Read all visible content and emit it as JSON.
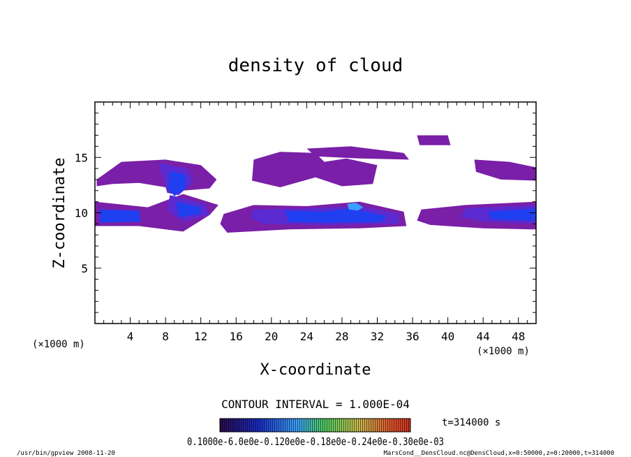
{
  "chart_data": {
    "type": "heatmap",
    "title": "density of cloud",
    "xlabel": "X-coordinate",
    "ylabel": "Z-coordinate",
    "x_unit_label_left": "(×1000 m)",
    "x_unit_label_right": "(×1000 m)",
    "xlim": [
      0,
      50
    ],
    "ylim": [
      0,
      20
    ],
    "x_ticks": [
      4,
      8,
      12,
      16,
      20,
      24,
      28,
      32,
      36,
      40,
      44,
      48
    ],
    "y_ticks": [
      5,
      10,
      15
    ],
    "x_tick_labels": [
      "4",
      "8",
      "12",
      "16",
      "20",
      "24",
      "28",
      "32",
      "36",
      "40",
      "44",
      "48"
    ],
    "y_tick_labels": [
      "5",
      "10",
      "15"
    ],
    "contour_interval_text": "CONTOUR INTERVAL = 1.000E-04",
    "time_text": "t=314000 s",
    "colorbar_labels_text": "0.1000e-6.0e0e-0.120e0e-0.18e0e-0.24e0e-0.30e0e-03",
    "footer_left": "/usr/bin/gpview  2008-11-20",
    "footer_right": "MarsCond__DensCloud.nc@DensCloud,x=0:50000,z=0:20000,t=314000",
    "colors": {
      "low": "#7a1fa8",
      "mid": "#5b2ad0",
      "high": "#1f3ff0",
      "peak": "#3aa0ff"
    },
    "regions": [
      {
        "level": "low",
        "poly": [
          [
            0.2,
            13.0
          ],
          [
            3,
            14.6
          ],
          [
            8,
            14.8
          ],
          [
            12,
            14.3
          ],
          [
            13.8,
            13.0
          ],
          [
            13,
            12.2
          ],
          [
            10,
            12.0
          ],
          [
            8,
            12.3
          ],
          [
            5,
            12.7
          ],
          [
            2,
            12.6
          ],
          [
            0.2,
            12.4
          ]
        ]
      },
      {
        "level": "mid",
        "poly": [
          [
            7.2,
            14.5
          ],
          [
            10.5,
            14.0
          ],
          [
            11.2,
            12.8
          ],
          [
            9.5,
            11.6
          ],
          [
            8.2,
            11.8
          ]
        ]
      },
      {
        "level": "high",
        "poly": [
          [
            8.5,
            13.8
          ],
          [
            10.3,
            13.4
          ],
          [
            10.3,
            12.2
          ],
          [
            9.0,
            11.5
          ],
          [
            8.3,
            12.2
          ]
        ]
      },
      {
        "level": "low",
        "poly": [
          [
            18,
            14.8
          ],
          [
            21,
            15.5
          ],
          [
            25,
            15.4
          ],
          [
            26,
            14.6
          ],
          [
            28.5,
            14.9
          ],
          [
            32,
            14.3
          ],
          [
            31.5,
            12.6
          ],
          [
            28,
            12.4
          ],
          [
            25,
            13.2
          ],
          [
            21,
            12.3
          ],
          [
            17.8,
            12.9
          ]
        ]
      },
      {
        "level": "low",
        "poly": [
          [
            24,
            15.8
          ],
          [
            29,
            16.0
          ],
          [
            35,
            15.4
          ],
          [
            35.6,
            14.8
          ],
          [
            30,
            14.9
          ],
          [
            25,
            15.1
          ]
        ]
      },
      {
        "level": "low",
        "poly": [
          [
            36.5,
            17.0
          ],
          [
            40,
            17.0
          ],
          [
            40.3,
            16.1
          ],
          [
            36.8,
            16.1
          ]
        ]
      },
      {
        "level": "low",
        "poly": [
          [
            43,
            14.8
          ],
          [
            47,
            14.6
          ],
          [
            50,
            14.1
          ],
          [
            50,
            12.9
          ],
          [
            46,
            13.0
          ],
          [
            43.2,
            13.7
          ]
        ]
      },
      {
        "level": "low",
        "poly": [
          [
            0,
            11.0
          ],
          [
            6,
            10.5
          ],
          [
            10,
            11.7
          ],
          [
            14,
            10.7
          ],
          [
            13,
            9.8
          ],
          [
            10,
            8.3
          ],
          [
            5,
            8.8
          ],
          [
            0,
            8.8
          ]
        ]
      },
      {
        "level": "high",
        "poly": [
          [
            0.5,
            10.3
          ],
          [
            5,
            10.2
          ],
          [
            5.2,
            9.2
          ],
          [
            0.6,
            9.1
          ]
        ]
      },
      {
        "level": "mid",
        "poly": [
          [
            8.5,
            11.6
          ],
          [
            12.5,
            10.8
          ],
          [
            13,
            9.8
          ],
          [
            10,
            9.2
          ],
          [
            8.2,
            10.2
          ]
        ]
      },
      {
        "level": "high",
        "poly": [
          [
            9.2,
            11.0
          ],
          [
            12,
            10.5
          ],
          [
            12,
            9.9
          ],
          [
            9.5,
            9.6
          ]
        ]
      },
      {
        "level": "low",
        "poly": [
          [
            14.6,
            9.9
          ],
          [
            18,
            10.7
          ],
          [
            24,
            10.6
          ],
          [
            30,
            11.0
          ],
          [
            35,
            10.1
          ],
          [
            35.3,
            8.8
          ],
          [
            30,
            8.6
          ],
          [
            22,
            8.5
          ],
          [
            15,
            8.2
          ],
          [
            14.2,
            9.0
          ]
        ]
      },
      {
        "level": "mid",
        "poly": [
          [
            18,
            10.3
          ],
          [
            24,
            10.4
          ],
          [
            30,
            10.6
          ],
          [
            34.5,
            9.9
          ],
          [
            34.4,
            9.0
          ],
          [
            26,
            8.9
          ],
          [
            19,
            9.0
          ],
          [
            17.6,
            9.6
          ]
        ]
      },
      {
        "level": "high",
        "poly": [
          [
            21.5,
            10.2
          ],
          [
            26,
            10.1
          ],
          [
            29,
            10.4
          ],
          [
            33,
            9.7
          ],
          [
            32.5,
            9.2
          ],
          [
            26,
            9.1
          ],
          [
            22,
            9.2
          ]
        ]
      },
      {
        "level": "peak",
        "poly": [
          [
            28.6,
            10.8
          ],
          [
            29.6,
            10.9
          ],
          [
            30.4,
            10.5
          ],
          [
            29.8,
            10.2
          ],
          [
            28.8,
            10.3
          ]
        ]
      },
      {
        "level": "low",
        "poly": [
          [
            37,
            10.3
          ],
          [
            42,
            10.7
          ],
          [
            50,
            11.0
          ],
          [
            50,
            8.5
          ],
          [
            44,
            8.6
          ],
          [
            38,
            8.9
          ],
          [
            36.5,
            9.3
          ]
        ]
      },
      {
        "level": "mid",
        "poly": [
          [
            42,
            10.4
          ],
          [
            50,
            10.7
          ],
          [
            50,
            9.0
          ],
          [
            44,
            9.2
          ],
          [
            41.5,
            9.6
          ]
        ]
      },
      {
        "level": "high",
        "poly": [
          [
            44.5,
            10.1
          ],
          [
            50,
            10.4
          ],
          [
            50,
            9.3
          ],
          [
            45,
            9.4
          ]
        ]
      }
    ]
  }
}
